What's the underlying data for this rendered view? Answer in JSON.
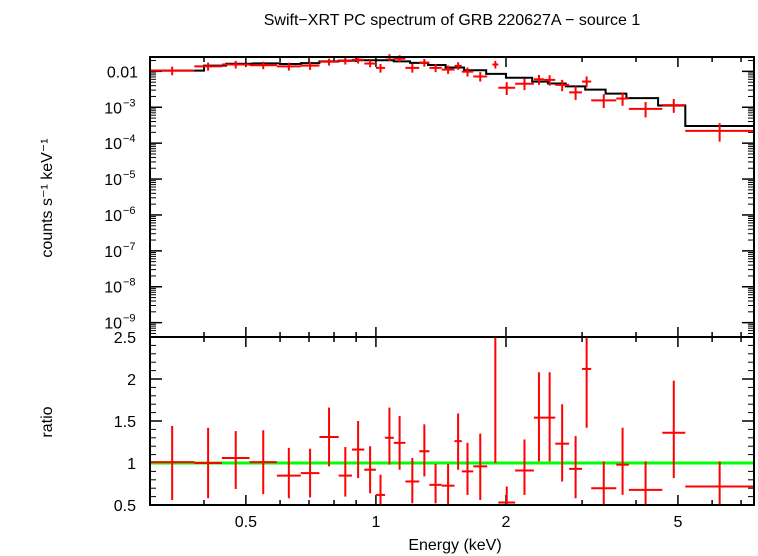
{
  "chart_data": {
    "type": "line",
    "title": "Swift−XRT PC spectrum of GRB 220627A − source 1",
    "xlabel": "Energy (keV)",
    "x_scale": "log",
    "xlim": [
      0.3,
      7.5
    ],
    "x_ticks": [
      {
        "value": 0.5,
        "label": "0.5"
      },
      {
        "value": 1,
        "label": "1"
      },
      {
        "value": 2,
        "label": "2"
      },
      {
        "value": 5,
        "label": "5"
      }
    ],
    "colors": {
      "data": "#ff0000",
      "model": "#000000",
      "unity": "#00ff00",
      "axes": "#000000"
    },
    "panels": [
      {
        "name": "spectrum",
        "ylabel": "counts s⁻¹ keV⁻¹",
        "y_scale": "log",
        "ylim_log10": [
          -9.4,
          -1.6
        ],
        "y_ticks": [
          {
            "value_log10": -2,
            "base": "0.01",
            "exp": ""
          },
          {
            "value_log10": -3,
            "base": "10",
            "exp": "−3"
          },
          {
            "value_log10": -4,
            "base": "10",
            "exp": "−4"
          },
          {
            "value_log10": -5,
            "base": "10",
            "exp": "−5"
          },
          {
            "value_log10": -6,
            "base": "10",
            "exp": "−6"
          },
          {
            "value_log10": -7,
            "base": "10",
            "exp": "−7"
          },
          {
            "value_log10": -8,
            "base": "10",
            "exp": "−8"
          },
          {
            "value_log10": -9,
            "base": "10",
            "exp": "−9"
          }
        ],
        "series": [
          {
            "name": "data",
            "style": "errorbars",
            "points": [
              {
                "lo": 0.3,
                "hi": 0.38,
                "y": 0.0105,
                "ylo": 0.0078,
                "yhi": 0.0135
              },
              {
                "lo": 0.38,
                "hi": 0.44,
                "y": 0.0138,
                "ylo": 0.0105,
                "yhi": 0.0175
              },
              {
                "lo": 0.44,
                "hi": 0.51,
                "y": 0.0155,
                "ylo": 0.012,
                "yhi": 0.0195
              },
              {
                "lo": 0.51,
                "hi": 0.59,
                "y": 0.0148,
                "ylo": 0.0115,
                "yhi": 0.0185
              },
              {
                "lo": 0.59,
                "hi": 0.67,
                "y": 0.0138,
                "ylo": 0.0105,
                "yhi": 0.0175
              },
              {
                "lo": 0.67,
                "hi": 0.74,
                "y": 0.0145,
                "ylo": 0.011,
                "yhi": 0.0185
              },
              {
                "lo": 0.74,
                "hi": 0.82,
                "y": 0.0185,
                "ylo": 0.0145,
                "yhi": 0.0225
              },
              {
                "lo": 0.82,
                "hi": 0.88,
                "y": 0.0195,
                "ylo": 0.0155,
                "yhi": 0.024
              },
              {
                "lo": 0.88,
                "hi": 0.94,
                "y": 0.021,
                "ylo": 0.0165,
                "yhi": 0.0255
              },
              {
                "lo": 0.94,
                "hi": 1.0,
                "y": 0.0165,
                "ylo": 0.013,
                "yhi": 0.0205
              },
              {
                "lo": 1.0,
                "hi": 1.05,
                "y": 0.0125,
                "ylo": 0.0092,
                "yhi": 0.016
              },
              {
                "lo": 1.05,
                "hi": 1.1,
                "y": 0.0245,
                "ylo": 0.0195,
                "yhi": 0.03
              },
              {
                "lo": 1.1,
                "hi": 1.17,
                "y": 0.0225,
                "ylo": 0.018,
                "yhi": 0.028
              },
              {
                "lo": 1.17,
                "hi": 1.26,
                "y": 0.0125,
                "ylo": 0.0092,
                "yhi": 0.016
              },
              {
                "lo": 1.26,
                "hi": 1.33,
                "y": 0.0175,
                "ylo": 0.0135,
                "yhi": 0.022
              },
              {
                "lo": 1.33,
                "hi": 1.42,
                "y": 0.0125,
                "ylo": 0.0095,
                "yhi": 0.016
              },
              {
                "lo": 1.42,
                "hi": 1.52,
                "y": 0.0112,
                "ylo": 0.0085,
                "yhi": 0.0145
              },
              {
                "lo": 1.52,
                "hi": 1.58,
                "y": 0.0142,
                "ylo": 0.011,
                "yhi": 0.018
              },
              {
                "lo": 1.58,
                "hi": 1.68,
                "y": 0.0098,
                "ylo": 0.0072,
                "yhi": 0.0128
              },
              {
                "lo": 1.68,
                "hi": 1.81,
                "y": 0.0072,
                "ylo": 0.0052,
                "yhi": 0.0095
              },
              {
                "lo": 1.86,
                "hi": 1.92,
                "y": 0.0155,
                "ylo": 0.012,
                "yhi": 0.0195
              },
              {
                "lo": 1.92,
                "hi": 2.1,
                "y": 0.0035,
                "ylo": 0.0022,
                "yhi": 0.005
              },
              {
                "lo": 2.1,
                "hi": 2.32,
                "y": 0.0045,
                "ylo": 0.003,
                "yhi": 0.0062
              },
              {
                "lo": 2.32,
                "hi": 2.45,
                "y": 0.006,
                "ylo": 0.0042,
                "yhi": 0.008
              },
              {
                "lo": 2.45,
                "hi": 2.6,
                "y": 0.0058,
                "ylo": 0.004,
                "yhi": 0.0078
              },
              {
                "lo": 2.6,
                "hi": 2.8,
                "y": 0.0042,
                "ylo": 0.0028,
                "yhi": 0.0058
              },
              {
                "lo": 2.8,
                "hi": 3.0,
                "y": 0.0026,
                "ylo": 0.0016,
                "yhi": 0.0038
              },
              {
                "lo": 3.0,
                "hi": 3.15,
                "y": 0.0052,
                "ylo": 0.0036,
                "yhi": 0.0072
              },
              {
                "lo": 3.15,
                "hi": 3.6,
                "y": 0.00155,
                "ylo": 0.00095,
                "yhi": 0.0023
              },
              {
                "lo": 3.6,
                "hi": 3.85,
                "y": 0.00175,
                "ylo": 0.0011,
                "yhi": 0.0026
              },
              {
                "lo": 3.85,
                "hi": 4.6,
                "y": 0.0009,
                "ylo": 0.00052,
                "yhi": 0.0014
              },
              {
                "lo": 4.6,
                "hi": 5.2,
                "y": 0.00115,
                "ylo": 0.0007,
                "yhi": 0.0017
              },
              {
                "lo": 5.2,
                "hi": 7.5,
                "y": 0.00022,
                "ylo": 0.00011,
                "yhi": 0.00036
              }
            ]
          },
          {
            "name": "model",
            "style": "step",
            "steps": [
              {
                "lo": 0.3,
                "hi": 0.4,
                "y": 0.0105
              },
              {
                "lo": 0.4,
                "hi": 0.45,
                "y": 0.0145
              },
              {
                "lo": 0.45,
                "hi": 0.52,
                "y": 0.0162
              },
              {
                "lo": 0.52,
                "hi": 0.6,
                "y": 0.0167
              },
              {
                "lo": 0.6,
                "hi": 0.67,
                "y": 0.016
              },
              {
                "lo": 0.67,
                "hi": 0.74,
                "y": 0.017
              },
              {
                "lo": 0.74,
                "hi": 0.82,
                "y": 0.019
              },
              {
                "lo": 0.82,
                "hi": 0.9,
                "y": 0.02
              },
              {
                "lo": 0.9,
                "hi": 1.0,
                "y": 0.0205
              },
              {
                "lo": 1.0,
                "hi": 1.1,
                "y": 0.0205
              },
              {
                "lo": 1.1,
                "hi": 1.2,
                "y": 0.019
              },
              {
                "lo": 1.2,
                "hi": 1.32,
                "y": 0.0172
              },
              {
                "lo": 1.32,
                "hi": 1.45,
                "y": 0.015
              },
              {
                "lo": 1.45,
                "hi": 1.6,
                "y": 0.0128
              },
              {
                "lo": 1.6,
                "hi": 1.8,
                "y": 0.0108
              },
              {
                "lo": 1.8,
                "hi": 2.0,
                "y": 0.0085
              },
              {
                "lo": 2.0,
                "hi": 2.3,
                "y": 0.0066
              },
              {
                "lo": 2.3,
                "hi": 2.5,
                "y": 0.0052
              },
              {
                "lo": 2.5,
                "hi": 2.75,
                "y": 0.0046
              },
              {
                "lo": 2.75,
                "hi": 3.05,
                "y": 0.0038
              },
              {
                "lo": 3.05,
                "hi": 3.4,
                "y": 0.0031
              },
              {
                "lo": 3.4,
                "hi": 3.8,
                "y": 0.0024
              },
              {
                "lo": 3.8,
                "hi": 4.5,
                "y": 0.0018
              },
              {
                "lo": 4.5,
                "hi": 5.2,
                "y": 0.00112
              },
              {
                "lo": 5.2,
                "hi": 7.5,
                "y": 0.0003
              }
            ]
          }
        ]
      },
      {
        "name": "ratio",
        "ylabel": "ratio",
        "y_scale": "linear",
        "ylim": [
          0.5,
          2.5
        ],
        "y_ticks": [
          {
            "value": 0.5,
            "label": "0.5"
          },
          {
            "value": 1,
            "label": "1"
          },
          {
            "value": 1.5,
            "label": "1.5"
          },
          {
            "value": 2,
            "label": "2"
          },
          {
            "value": 2.5,
            "label": "2.5"
          }
        ],
        "reference_line": 1,
        "series": [
          {
            "name": "data/model",
            "style": "errorbars",
            "points": [
              {
                "lo": 0.3,
                "hi": 0.38,
                "y": 1.01,
                "ylo": 0.56,
                "yhi": 1.44
              },
              {
                "lo": 0.38,
                "hi": 0.44,
                "y": 1.0,
                "ylo": 0.58,
                "yhi": 1.42
              },
              {
                "lo": 0.44,
                "hi": 0.51,
                "y": 1.06,
                "ylo": 0.69,
                "yhi": 1.38
              },
              {
                "lo": 0.51,
                "hi": 0.59,
                "y": 1.01,
                "ylo": 0.63,
                "yhi": 1.39
              },
              {
                "lo": 0.59,
                "hi": 0.67,
                "y": 0.85,
                "ylo": 0.58,
                "yhi": 1.18
              },
              {
                "lo": 0.67,
                "hi": 0.74,
                "y": 0.88,
                "ylo": 0.59,
                "yhi": 1.17
              },
              {
                "lo": 0.74,
                "hi": 0.82,
                "y": 1.31,
                "ylo": 0.96,
                "yhi": 1.66
              },
              {
                "lo": 0.82,
                "hi": 0.88,
                "y": 0.85,
                "ylo": 0.6,
                "yhi": 1.19
              },
              {
                "lo": 0.88,
                "hi": 0.94,
                "y": 1.16,
                "ylo": 0.82,
                "yhi": 1.5
              },
              {
                "lo": 0.94,
                "hi": 1.0,
                "y": 0.92,
                "ylo": 0.64,
                "yhi": 1.2
              },
              {
                "lo": 1.0,
                "hi": 1.05,
                "y": 0.62,
                "ylo": 0.5,
                "yhi": 0.86
              },
              {
                "lo": 1.05,
                "hi": 1.1,
                "y": 1.3,
                "ylo": 0.98,
                "yhi": 1.66
              },
              {
                "lo": 1.1,
                "hi": 1.17,
                "y": 1.24,
                "ylo": 0.92,
                "yhi": 1.56
              },
              {
                "lo": 1.17,
                "hi": 1.26,
                "y": 0.78,
                "ylo": 0.52,
                "yhi": 1.06
              },
              {
                "lo": 1.26,
                "hi": 1.33,
                "y": 1.14,
                "ylo": 0.84,
                "yhi": 1.46
              },
              {
                "lo": 1.33,
                "hi": 1.42,
                "y": 0.74,
                "ylo": 0.52,
                "yhi": 0.99
              },
              {
                "lo": 1.42,
                "hi": 1.52,
                "y": 0.73,
                "ylo": 0.5,
                "yhi": 0.99
              },
              {
                "lo": 1.52,
                "hi": 1.58,
                "y": 1.26,
                "ylo": 0.92,
                "yhi": 1.59
              },
              {
                "lo": 1.58,
                "hi": 1.68,
                "y": 0.9,
                "ylo": 0.62,
                "yhi": 1.24
              },
              {
                "lo": 1.68,
                "hi": 1.81,
                "y": 0.96,
                "ylo": 0.56,
                "yhi": 1.35
              },
              {
                "lo": 1.86,
                "hi": 1.92,
                "y": 2.5,
                "ylo": 1.0,
                "yhi": 2.5
              },
              {
                "lo": 1.92,
                "hi": 2.1,
                "y": 0.53,
                "ylo": 0.5,
                "yhi": 0.72
              },
              {
                "lo": 2.1,
                "hi": 2.32,
                "y": 0.91,
                "ylo": 0.62,
                "yhi": 1.28
              },
              {
                "lo": 2.32,
                "hi": 2.45,
                "y": 1.54,
                "ylo": 1.02,
                "yhi": 2.08
              },
              {
                "lo": 2.45,
                "hi": 2.6,
                "y": 1.54,
                "ylo": 1.02,
                "yhi": 2.08
              },
              {
                "lo": 2.6,
                "hi": 2.8,
                "y": 1.23,
                "ylo": 0.78,
                "yhi": 1.7
              },
              {
                "lo": 2.8,
                "hi": 3.0,
                "y": 0.93,
                "ylo": 0.58,
                "yhi": 1.32
              },
              {
                "lo": 3.0,
                "hi": 3.15,
                "y": 2.12,
                "ylo": 1.42,
                "yhi": 2.5
              },
              {
                "lo": 3.15,
                "hi": 3.6,
                "y": 0.7,
                "ylo": 0.5,
                "yhi": 1.02
              },
              {
                "lo": 3.6,
                "hi": 3.85,
                "y": 0.98,
                "ylo": 0.62,
                "yhi": 1.42
              },
              {
                "lo": 3.85,
                "hi": 4.6,
                "y": 0.68,
                "ylo": 0.5,
                "yhi": 1.02
              },
              {
                "lo": 4.6,
                "hi": 5.2,
                "y": 1.36,
                "ylo": 0.82,
                "yhi": 1.98
              },
              {
                "lo": 5.2,
                "hi": 7.5,
                "y": 0.72,
                "ylo": 0.5,
                "yhi": 1.02
              }
            ]
          }
        ]
      }
    ]
  }
}
